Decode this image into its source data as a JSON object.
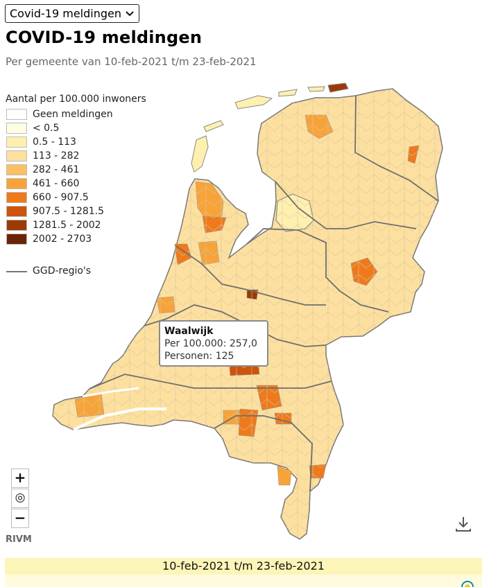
{
  "selector": {
    "value": "Covid-19 meldingen"
  },
  "title": "COVID-19 meldingen",
  "subtitle": "Per gemeente van 10-feb-2021 t/m 23-feb-2021",
  "legend": {
    "title": "Aantal per 100.000 inwoners",
    "items": [
      {
        "label": "Geen meldingen",
        "color": "#ffffff"
      },
      {
        "label": "< 0.5",
        "color": "#fffde2"
      },
      {
        "label": "0.5 - 113",
        "color": "#fff0b0"
      },
      {
        "label": "113 - 282",
        "color": "#fde0a0"
      },
      {
        "label": "282 - 461",
        "color": "#fbc062"
      },
      {
        "label": "461 - 660",
        "color": "#f8a339"
      },
      {
        "label": "660 - 907.5",
        "color": "#ee7a1c"
      },
      {
        "label": "907.5 - 1281.5",
        "color": "#cc540c"
      },
      {
        "label": "1281.5 - 2002",
        "color": "#9c3a06"
      },
      {
        "label": "2002 - 2703",
        "color": "#6a2508"
      }
    ],
    "ggd_label": "GGD-regio's"
  },
  "tooltip": {
    "name": "Waalwijk",
    "per100k": "Per 100.000: 257,0",
    "persons": "Personen: 125"
  },
  "controls": {
    "zoom_in": "+",
    "reset": "◎",
    "zoom_out": "−"
  },
  "credit": "RIVM",
  "period": "10-feb-2021 t/m 23-feb-2021",
  "icons": {
    "download": "download-icon",
    "play": "play-icon",
    "dropdown": "chevron-down-icon"
  }
}
